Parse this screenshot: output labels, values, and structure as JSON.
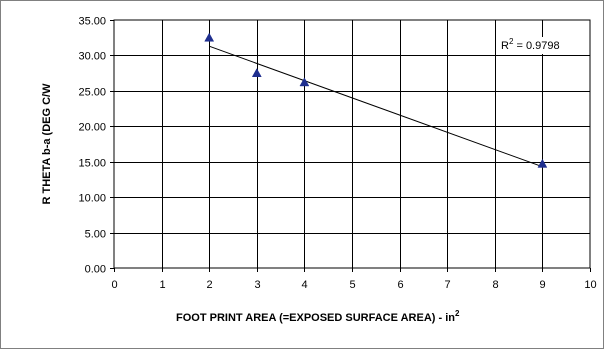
{
  "chart_data": {
    "type": "scatter",
    "xlabel": "FOOT PRINT AREA (=EXPOSED SURFACE AREA)  - in",
    "xlabel_superscript": "2",
    "ylabel": "R THETA b-a  (DEG C/W",
    "xlim": [
      0,
      10
    ],
    "ylim": [
      0,
      35
    ],
    "x_ticks": [
      "0",
      "1",
      "2",
      "3",
      "4",
      "5",
      "6",
      "7",
      "8",
      "9",
      "10"
    ],
    "y_ticks": [
      "0.00",
      "5.00",
      "10.00",
      "15.00",
      "20.00",
      "25.00",
      "30.00",
      "35.00"
    ],
    "grid": true,
    "series": [
      {
        "marker": "triangle",
        "color": "#1f2f8f",
        "points": [
          {
            "x": 2,
            "y": 32.5
          },
          {
            "x": 3,
            "y": 27.5
          },
          {
            "x": 4,
            "y": 26.2
          },
          {
            "x": 9,
            "y": 14.7
          }
        ]
      }
    ],
    "trendline": {
      "type": "linear",
      "color": "#000000",
      "x": [
        2,
        9
      ],
      "y": [
        31.3,
        14.3
      ],
      "r2_label_prefix": "R",
      "r2_label_superscript": "2",
      "r2_label_suffix": " = 0.9798"
    }
  }
}
